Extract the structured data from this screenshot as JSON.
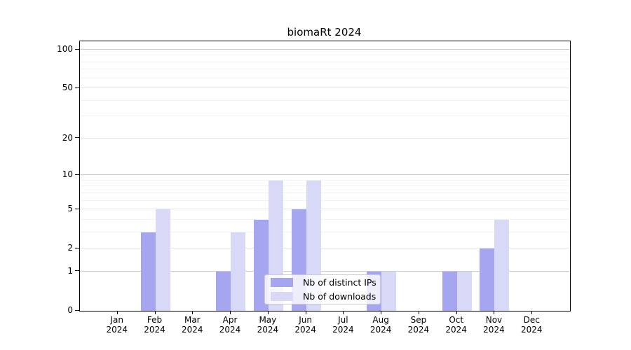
{
  "title": "biomaRt 2024",
  "colors": {
    "distinct_ips_bar": "#a6a6f0",
    "downloads_bar": "#d8d8f7",
    "grid_decade": "#c9c9c9",
    "grid_major": "#e6e6e6",
    "grid_minor": "#f2f2f2",
    "axis": "#000000"
  },
  "legend": {
    "items": [
      {
        "label": "Nb of distinct IPs",
        "color": "#a6a6f0"
      },
      {
        "label": "Nb of downloads",
        "color": "#d8d8f7"
      }
    ]
  },
  "chart_data": {
    "type": "bar",
    "title": "biomaRt 2024",
    "categories": [
      "Jan 2024",
      "Feb 2024",
      "Mar 2024",
      "Apr 2024",
      "May 2024",
      "Jun 2024",
      "Jul 2024",
      "Aug 2024",
      "Sep 2024",
      "Oct 2024",
      "Nov 2024",
      "Dec 2024"
    ],
    "x_tick_line1": [
      "Jan",
      "Feb",
      "Mar",
      "Apr",
      "May",
      "Jun",
      "Jul",
      "Aug",
      "Sep",
      "Oct",
      "Nov",
      "Dec"
    ],
    "x_tick_line2": [
      "2024",
      "2024",
      "2024",
      "2024",
      "2024",
      "2024",
      "2024",
      "2024",
      "2024",
      "2024",
      "2024",
      "2024"
    ],
    "series": [
      {
        "name": "Nb of distinct IPs",
        "color": "#a6a6f0",
        "values": [
          0,
          3,
          0,
          1,
          4,
          5,
          0,
          1,
          0,
          1,
          2,
          0
        ]
      },
      {
        "name": "Nb of downloads",
        "color": "#d8d8f7",
        "values": [
          0,
          5,
          0,
          3,
          9,
          9,
          0,
          1,
          0,
          1,
          4,
          0
        ]
      }
    ],
    "y_ticks": [
      0,
      1,
      2,
      5,
      10,
      20,
      50,
      100
    ],
    "y_decade_ticks": [
      1,
      10,
      100
    ],
    "y_minor_ticks": [
      3,
      4,
      6,
      7,
      8,
      9,
      30,
      40,
      60,
      70,
      80,
      90
    ],
    "y_scale": "log1p",
    "ylim": [
      0,
      100
    ],
    "xlabel": "",
    "ylabel": "",
    "grid": true,
    "legend_position": "inside-bottom-center"
  }
}
